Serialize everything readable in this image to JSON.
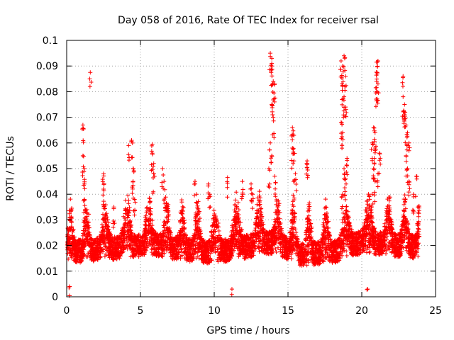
{
  "chart_data": {
    "type": "scatter",
    "title": "Day 058 of 2016, Rate Of TEC Index for receiver rsal",
    "xlabel": "GPS time / hours",
    "ylabel": "ROTI / TECUs",
    "xlim": [
      0,
      25
    ],
    "ylim": [
      0,
      0.1
    ],
    "xticks": [
      0,
      5,
      10,
      15,
      20,
      25
    ],
    "yticks": [
      0,
      0.01,
      0.02,
      0.03,
      0.04,
      0.05,
      0.06,
      0.07,
      0.08,
      0.09,
      0.1
    ],
    "xtick_labels": [
      "0",
      "5",
      "10",
      "15",
      "20",
      "25"
    ],
    "ytick_labels": [
      "0",
      "0.01",
      "0.02",
      "0.03",
      "0.04",
      "0.05",
      "0.06",
      "0.07",
      "0.08",
      "0.09",
      "0.1"
    ],
    "grid": true,
    "marker": "+",
    "color": "#ff0000",
    "series": [
      {
        "name": "ROTI",
        "baseline_profile": {
          "x": [
            0,
            2,
            4,
            6,
            8,
            10,
            12,
            14,
            16,
            18,
            20,
            22,
            24
          ],
          "y": [
            0.012,
            0.013,
            0.014,
            0.015,
            0.013,
            0.012,
            0.014,
            0.016,
            0.011,
            0.012,
            0.016,
            0.015,
            0.014
          ]
        },
        "spike_points": [
          {
            "x": 1.1,
            "y": 0.067
          },
          {
            "x": 1.1,
            "y": 0.055
          },
          {
            "x": 1.2,
            "y": 0.05
          },
          {
            "x": 1.2,
            "y": 0.044
          },
          {
            "x": 1.2,
            "y": 0.038
          },
          {
            "x": 1.6,
            "y": 0.0875
          },
          {
            "x": 2.5,
            "y": 0.048
          },
          {
            "x": 2.5,
            "y": 0.042
          },
          {
            "x": 3.2,
            "y": 0.035
          },
          {
            "x": 4.2,
            "y": 0.059
          },
          {
            "x": 4.4,
            "y": 0.061
          },
          {
            "x": 4.5,
            "y": 0.05
          },
          {
            "x": 4.5,
            "y": 0.045
          },
          {
            "x": 4.6,
            "y": 0.038
          },
          {
            "x": 5.8,
            "y": 0.0595
          },
          {
            "x": 5.8,
            "y": 0.056
          },
          {
            "x": 5.9,
            "y": 0.052
          },
          {
            "x": 5.9,
            "y": 0.048
          },
          {
            "x": 6.5,
            "y": 0.05
          },
          {
            "x": 6.6,
            "y": 0.045
          },
          {
            "x": 8.7,
            "y": 0.045
          },
          {
            "x": 8.8,
            "y": 0.04
          },
          {
            "x": 9.6,
            "y": 0.044
          },
          {
            "x": 9.7,
            "y": 0.04
          },
          {
            "x": 10.9,
            "y": 0.0465
          },
          {
            "x": 11.9,
            "y": 0.045
          },
          {
            "x": 12.5,
            "y": 0.044
          },
          {
            "x": 12.6,
            "y": 0.04
          },
          {
            "x": 13.8,
            "y": 0.095
          },
          {
            "x": 13.9,
            "y": 0.093
          },
          {
            "x": 13.9,
            "y": 0.09
          },
          {
            "x": 14.0,
            "y": 0.084
          },
          {
            "x": 14.1,
            "y": 0.083
          },
          {
            "x": 13.9,
            "y": 0.075
          },
          {
            "x": 14.0,
            "y": 0.07
          },
          {
            "x": 13.8,
            "y": 0.06
          },
          {
            "x": 13.9,
            "y": 0.055
          },
          {
            "x": 13.7,
            "y": 0.05
          },
          {
            "x": 14.1,
            "y": 0.047
          },
          {
            "x": 15.3,
            "y": 0.066
          },
          {
            "x": 15.4,
            "y": 0.063
          },
          {
            "x": 15.3,
            "y": 0.058
          },
          {
            "x": 15.4,
            "y": 0.053
          },
          {
            "x": 15.5,
            "y": 0.048
          },
          {
            "x": 16.3,
            "y": 0.053
          },
          {
            "x": 16.3,
            "y": 0.052
          },
          {
            "x": 18.6,
            "y": 0.092
          },
          {
            "x": 18.8,
            "y": 0.094
          },
          {
            "x": 18.7,
            "y": 0.09
          },
          {
            "x": 18.9,
            "y": 0.086
          },
          {
            "x": 18.7,
            "y": 0.082
          },
          {
            "x": 18.8,
            "y": 0.078
          },
          {
            "x": 18.9,
            "y": 0.074
          },
          {
            "x": 18.6,
            "y": 0.068
          },
          {
            "x": 18.7,
            "y": 0.064
          },
          {
            "x": 19.0,
            "y": 0.054
          },
          {
            "x": 18.8,
            "y": 0.05
          },
          {
            "x": 18.9,
            "y": 0.046
          },
          {
            "x": 18.7,
            "y": 0.04
          },
          {
            "x": 20.7,
            "y": 0.06
          },
          {
            "x": 20.8,
            "y": 0.066
          },
          {
            "x": 20.9,
            "y": 0.064
          },
          {
            "x": 20.9,
            "y": 0.058
          },
          {
            "x": 20.8,
            "y": 0.05
          },
          {
            "x": 20.9,
            "y": 0.045
          },
          {
            "x": 20.7,
            "y": 0.04
          },
          {
            "x": 21.0,
            "y": 0.084
          },
          {
            "x": 21.1,
            "y": 0.083
          },
          {
            "x": 21.0,
            "y": 0.08
          },
          {
            "x": 21.1,
            "y": 0.092
          },
          {
            "x": 21.0,
            "y": 0.0915
          },
          {
            "x": 21.2,
            "y": 0.056
          },
          {
            "x": 21.1,
            "y": 0.048
          },
          {
            "x": 22.8,
            "y": 0.086
          },
          {
            "x": 22.8,
            "y": 0.078
          },
          {
            "x": 22.9,
            "y": 0.075
          },
          {
            "x": 22.9,
            "y": 0.071
          },
          {
            "x": 23.0,
            "y": 0.067
          },
          {
            "x": 23.1,
            "y": 0.064
          },
          {
            "x": 23.2,
            "y": 0.06
          },
          {
            "x": 23.0,
            "y": 0.055
          },
          {
            "x": 23.1,
            "y": 0.05
          },
          {
            "x": 23.2,
            "y": 0.045
          },
          {
            "x": 23.5,
            "y": 0.04
          },
          {
            "x": 23.7,
            "y": 0.047
          },
          {
            "x": 23.8,
            "y": 0.035
          },
          {
            "x": 20.4,
            "y": 0.003
          },
          {
            "x": 11.2,
            "y": 0.003
          },
          {
            "x": 0.2,
            "y": 0.004
          }
        ]
      }
    ]
  }
}
